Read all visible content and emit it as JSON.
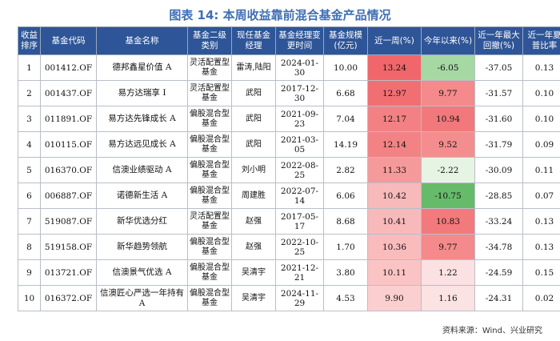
{
  "title": "图表 14: 本周收益靠前混合基金产品情况",
  "headers": [
    "收益排序",
    "基金代码",
    "基金名称",
    "基金二级类别",
    "现任基金经理",
    "基金经理变更时间",
    "基金规模(亿元)",
    "近一周(%)",
    "今年以来(%)",
    "近一年最大回撤(%)",
    "近一年夏普比率"
  ],
  "rows": [
    {
      "rank": "1",
      "code": "001412.OF",
      "name": "德邦鑫星价值 A",
      "category": "灵活配置型基金",
      "manager": "雷涛,陆阳",
      "change_date": "2024-01-30",
      "scale": "10.00",
      "week": "13.24",
      "week_color": "#f0666a",
      "ytd": "-6.05",
      "ytd_color": "#a6d8a4",
      "drawdown": "-37.05",
      "sharpe": "0.13"
    },
    {
      "rank": "2",
      "code": "001437.OF",
      "name": "易方达瑞享 I",
      "category": "灵活配置型基金",
      "manager": "武阳",
      "change_date": "2017-12-30",
      "scale": "6.68",
      "week": "12.97",
      "week_color": "#f16f72",
      "ytd": "9.77",
      "ytd_color": "#f48a8b",
      "drawdown": "-31.57",
      "sharpe": "0.10"
    },
    {
      "rank": "3",
      "code": "011891.OF",
      "name": "易方达先锋成长 A",
      "category": "偏股混合型基金",
      "manager": "武阳",
      "change_date": "2021-09-23",
      "scale": "7.04",
      "week": "12.17",
      "week_color": "#f38183",
      "ytd": "10.94",
      "ytd_color": "#f1797b",
      "drawdown": "-31.60",
      "sharpe": "0.10"
    },
    {
      "rank": "4",
      "code": "010115.OF",
      "name": "易方达远见成长 A",
      "category": "偏股混合型基金",
      "manager": "武阳",
      "change_date": "2021-03-05",
      "scale": "14.19",
      "week": "12.14",
      "week_color": "#f38284",
      "ytd": "9.52",
      "ytd_color": "#f48d8e",
      "drawdown": "-31.79",
      "sharpe": "0.09"
    },
    {
      "rank": "5",
      "code": "016370.OF",
      "name": "信澳业绩驱动 A",
      "category": "偏股混合型基金",
      "manager": "刘小明",
      "change_date": "2022-08-25",
      "scale": "2.82",
      "week": "11.33",
      "week_color": "#f59a9b",
      "ytd": "-2.22",
      "ytd_color": "#e6f4e4",
      "drawdown": "-30.09",
      "sharpe": "0.11"
    },
    {
      "rank": "6",
      "code": "006887.OF",
      "name": "诺德新生活 A",
      "category": "偏股混合型基金",
      "manager": "周建胜",
      "change_date": "2022-07-14",
      "scale": "6.06",
      "week": "10.42",
      "week_color": "#f8b9ba",
      "ytd": "-10.75",
      "ytd_color": "#66bb6a",
      "drawdown": "-28.85",
      "sharpe": "0.07"
    },
    {
      "rank": "7",
      "code": "519087.OF",
      "name": "新华优选分红",
      "category": "灵活配置型基金",
      "manager": "赵强",
      "change_date": "2017-05-17",
      "scale": "8.68",
      "week": "10.41",
      "week_color": "#f8b9ba",
      "ytd": "10.83",
      "ytd_color": "#f27a7c",
      "drawdown": "-33.24",
      "sharpe": "0.13"
    },
    {
      "rank": "8",
      "code": "519158.OF",
      "name": "新华趋势领航",
      "category": "偏股混合型基金",
      "manager": "赵强",
      "change_date": "2022-10-25",
      "scale": "1.70",
      "week": "10.36",
      "week_color": "#f9bbbc",
      "ytd": "9.77",
      "ytd_color": "#f48a8b",
      "drawdown": "-34.78",
      "sharpe": "0.13"
    },
    {
      "rank": "9",
      "code": "013721.OF",
      "name": "信澳景气优选 A",
      "category": "偏股混合型基金",
      "manager": "吴清宇",
      "change_date": "2021-12-21",
      "scale": "3.80",
      "week": "10.11",
      "week_color": "#fac4c5",
      "ytd": "1.22",
      "ytd_color": "#fbe1e2",
      "drawdown": "-24.59",
      "sharpe": "0.15"
    },
    {
      "rank": "10",
      "code": "016372.OF",
      "name": "信澳匠心严选一年持有 A",
      "category": "偏股混合型基金",
      "manager": "吴清宇",
      "change_date": "2024-11-29",
      "scale": "4.53",
      "week": "9.90",
      "week_color": "#fbcfcf",
      "ytd": "1.16",
      "ytd_color": "#fbe2e3",
      "drawdown": "-24.31",
      "sharpe": "0.02"
    }
  ],
  "source": "资料来源：Wind、兴业研究"
}
